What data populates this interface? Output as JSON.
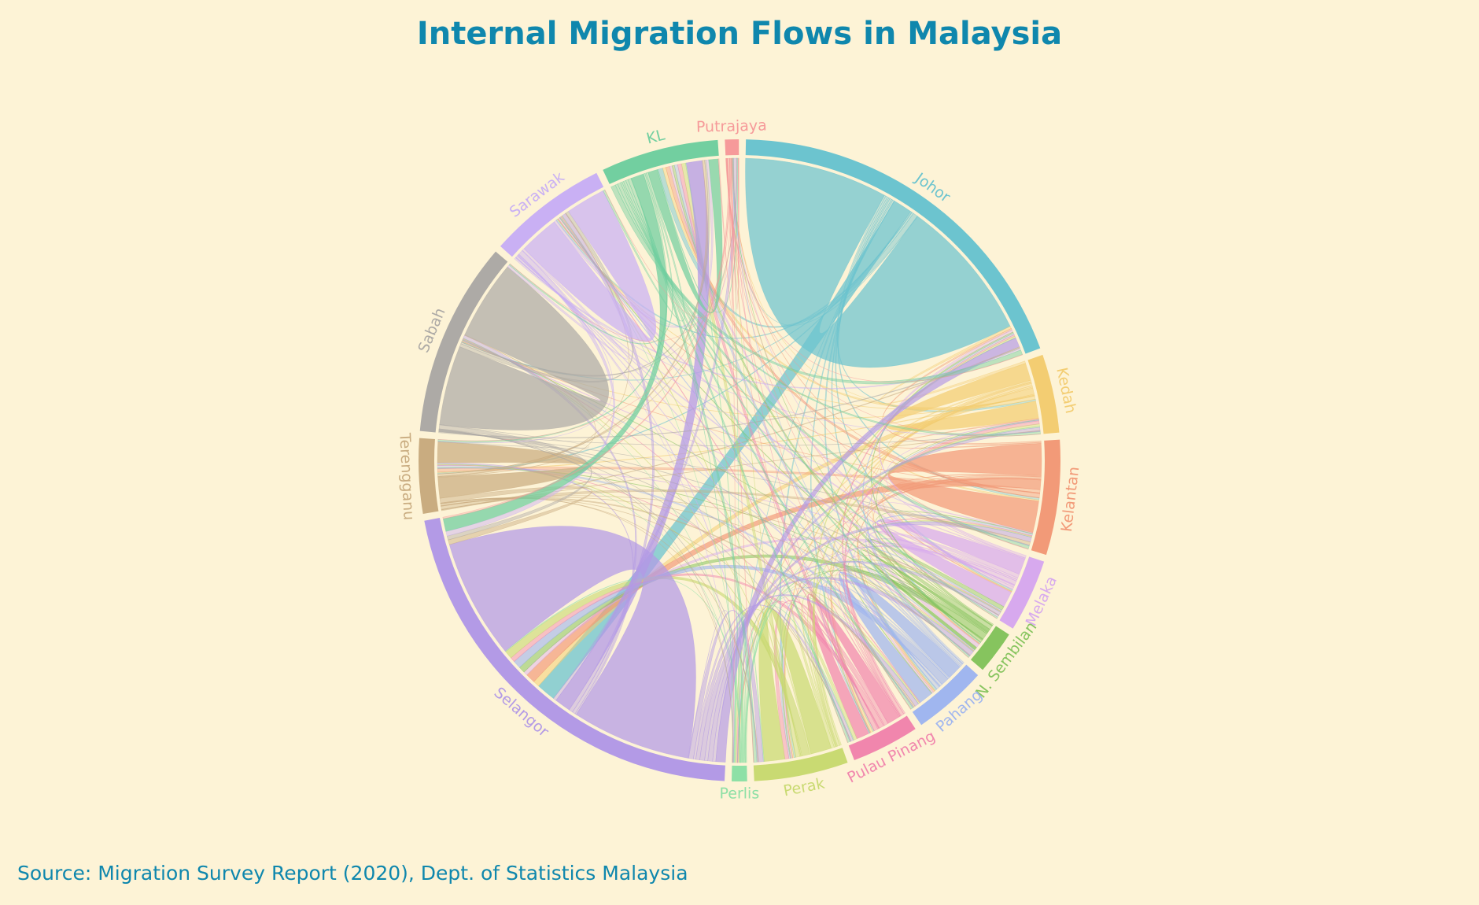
{
  "chart_data": {
    "type": "chord",
    "title": "Internal Migration Flows in Malaysia",
    "source": "Source: Migration Survey Report (2020), Dept. of Statistics Malaysia",
    "groups": [
      {
        "name": "Johor",
        "color": "#6cc4cf"
      },
      {
        "name": "Kedah",
        "color": "#f3cd72"
      },
      {
        "name": "Kelantan",
        "color": "#f29a78"
      },
      {
        "name": "Melaka",
        "color": "#d7a9ee"
      },
      {
        "name": "N. Sembilan",
        "color": "#86c45e"
      },
      {
        "name": "Pahang",
        "color": "#a0b6ef"
      },
      {
        "name": "Pulau Pinang",
        "color": "#f186ad"
      },
      {
        "name": "Perak",
        "color": "#c9da72"
      },
      {
        "name": "Perlis",
        "color": "#8ee0a6"
      },
      {
        "name": "Selangor",
        "color": "#b39ae6"
      },
      {
        "name": "Terengganu",
        "color": "#c9ac80"
      },
      {
        "name": "Sabah",
        "color": "#adaaa6"
      },
      {
        "name": "Sarawak",
        "color": "#c9b0f4"
      },
      {
        "name": "KL",
        "color": "#72cfa0"
      },
      {
        "name": "Putrajaya",
        "color": "#f69a9a"
      }
    ],
    "matrix": [
      [
        900,
        10,
        12,
        10,
        8,
        12,
        8,
        10,
        2,
        120,
        6,
        4,
        10,
        30,
        2
      ],
      [
        15,
        110,
        8,
        4,
        3,
        5,
        15,
        8,
        6,
        40,
        5,
        3,
        3,
        20,
        1
      ],
      [
        10,
        6,
        200,
        5,
        4,
        10,
        4,
        3,
        1,
        60,
        20,
        2,
        3,
        25,
        2
      ],
      [
        15,
        3,
        5,
        100,
        25,
        10,
        2,
        8,
        1,
        25,
        3,
        4,
        10,
        15,
        1
      ],
      [
        8,
        2,
        3,
        25,
        20,
        4,
        3,
        5,
        1,
        40,
        3,
        3,
        4,
        15,
        1
      ],
      [
        10,
        4,
        10,
        8,
        6,
        90,
        5,
        8,
        1,
        50,
        15,
        3,
        5,
        20,
        2
      ],
      [
        10,
        20,
        5,
        2,
        2,
        5,
        80,
        25,
        6,
        30,
        3,
        3,
        5,
        25,
        1
      ],
      [
        10,
        15,
        5,
        4,
        4,
        8,
        20,
        130,
        8,
        50,
        5,
        3,
        5,
        25,
        2
      ],
      [
        2,
        6,
        1,
        1,
        1,
        1,
        5,
        5,
        10,
        5,
        1,
        1,
        1,
        5,
        1
      ],
      [
        60,
        20,
        30,
        20,
        30,
        25,
        15,
        30,
        3,
        750,
        8,
        20,
        25,
        100,
        20
      ],
      [
        5,
        3,
        20,
        2,
        2,
        10,
        2,
        3,
        1,
        30,
        130,
        3,
        3,
        15,
        1
      ],
      [
        6,
        2,
        2,
        3,
        2,
        3,
        2,
        3,
        1,
        25,
        2,
        500,
        20,
        10,
        1
      ],
      [
        10,
        2,
        3,
        10,
        3,
        4,
        3,
        4,
        1,
        30,
        2,
        15,
        250,
        15,
        1
      ],
      [
        30,
        15,
        20,
        10,
        10,
        15,
        15,
        20,
        2,
        80,
        10,
        8,
        12,
        60,
        5
      ],
      [
        2,
        1,
        2,
        1,
        1,
        2,
        1,
        2,
        1,
        10,
        1,
        1,
        1,
        5,
        5
      ]
    ]
  }
}
